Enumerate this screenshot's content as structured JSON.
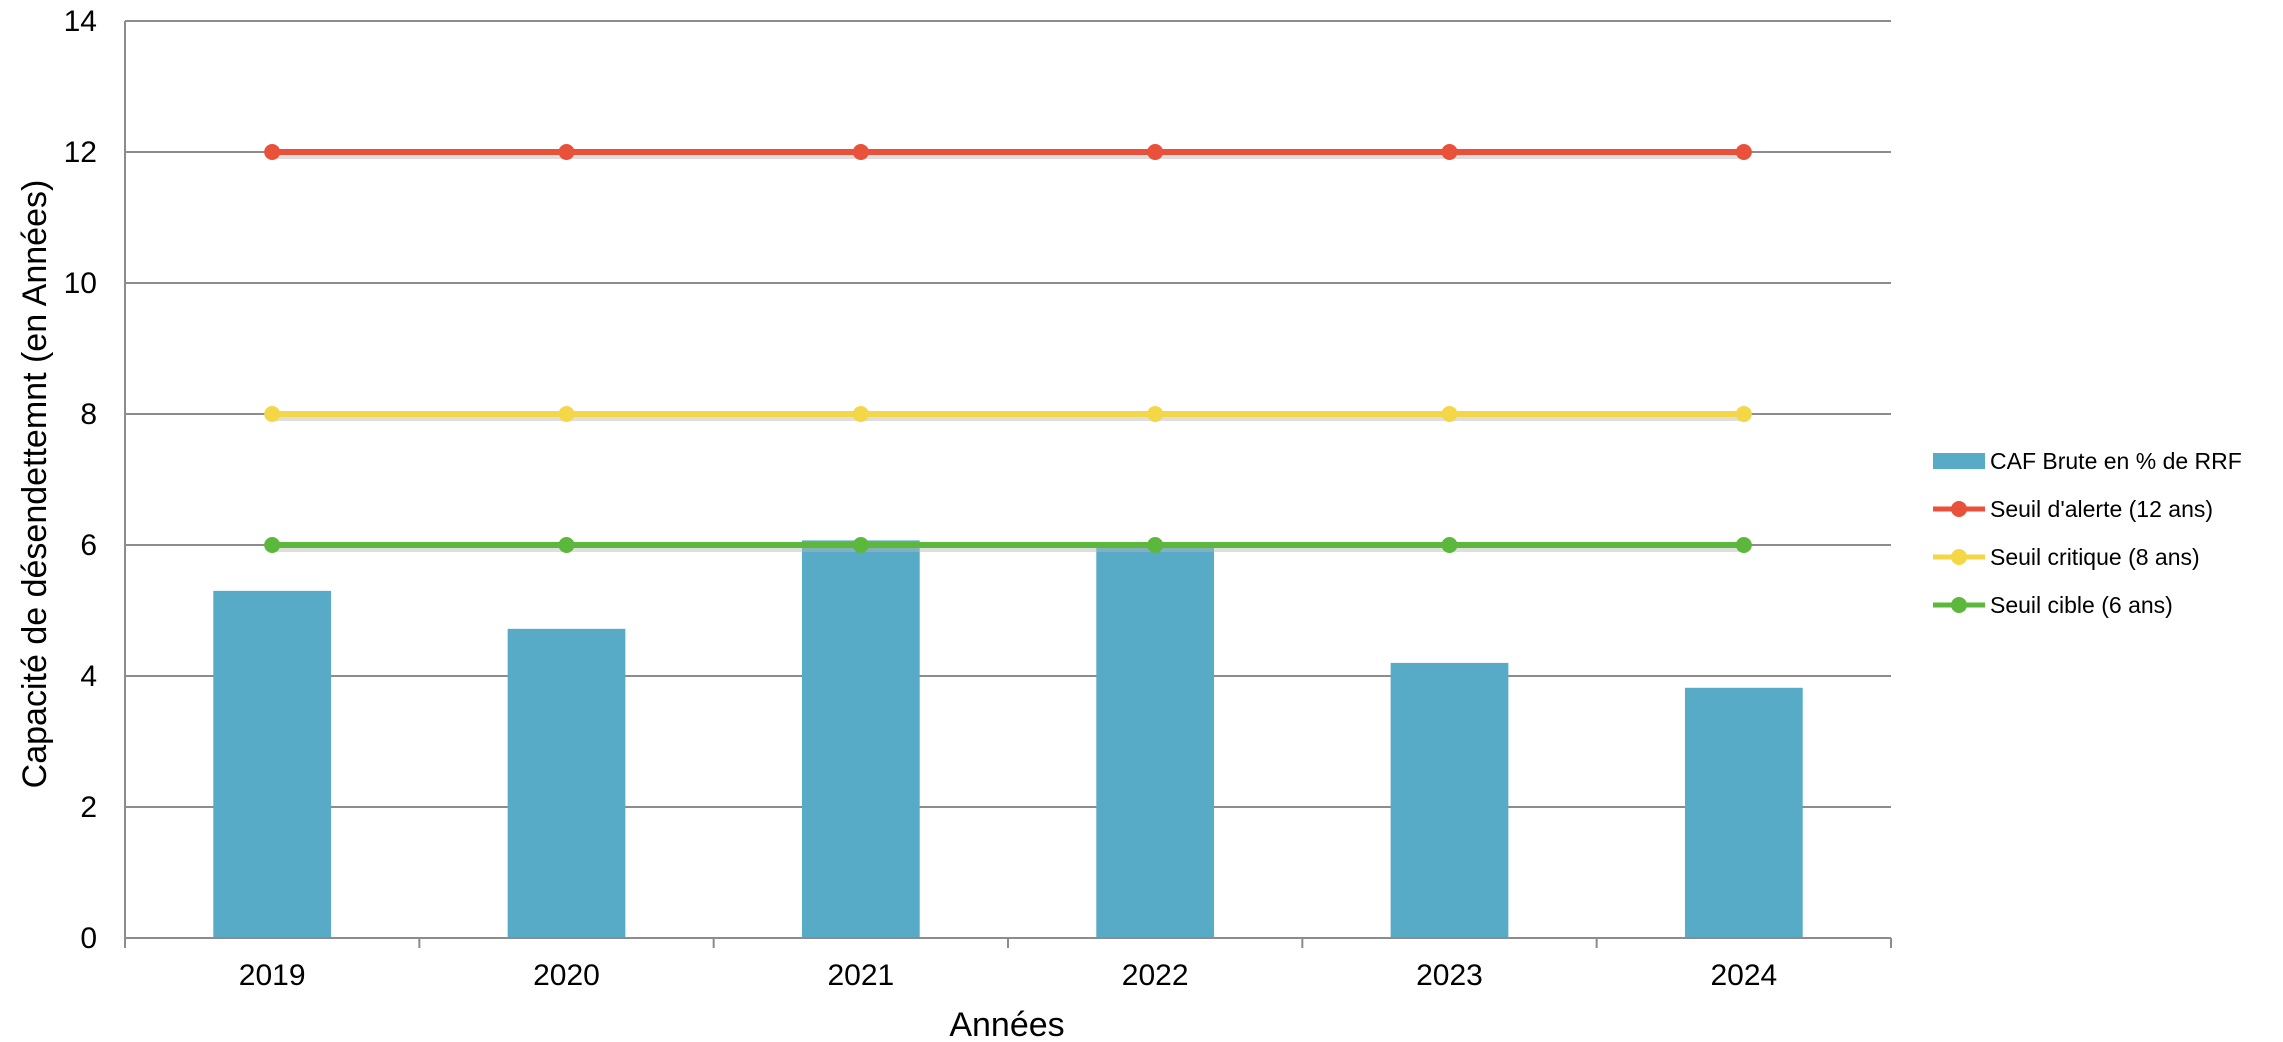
{
  "chart_data": {
    "type": "bar",
    "categories": [
      "2019",
      "2020",
      "2021",
      "2022",
      "2023",
      "2024"
    ],
    "xlabel": "Années",
    "ylabel": "Capacité de désendettemnt (en Années)",
    "ylim": [
      0,
      14
    ],
    "yticks": [
      "0",
      "2",
      "4",
      "6",
      "8",
      "10",
      "12",
      "14"
    ],
    "grid": true,
    "legend_position": "right",
    "bars": {
      "name": "CAF Brute en % de RRF",
      "color": "#58abc6",
      "values": [
        5.3,
        4.72,
        6.07,
        5.97,
        4.2,
        3.82
      ]
    },
    "lines": [
      {
        "name": "Seuil d'alerte (12 ans)",
        "color": "#e9513a",
        "values": [
          12,
          12,
          12,
          12,
          12,
          12
        ]
      },
      {
        "name": "Seuil critique (8 ans)",
        "color": "#f4d746",
        "values": [
          8,
          8,
          8,
          8,
          8,
          8
        ]
      },
      {
        "name": "Seuil cible (6 ans)",
        "color": "#5bb83c",
        "values": [
          6,
          6,
          6,
          6,
          6,
          6
        ]
      }
    ]
  }
}
